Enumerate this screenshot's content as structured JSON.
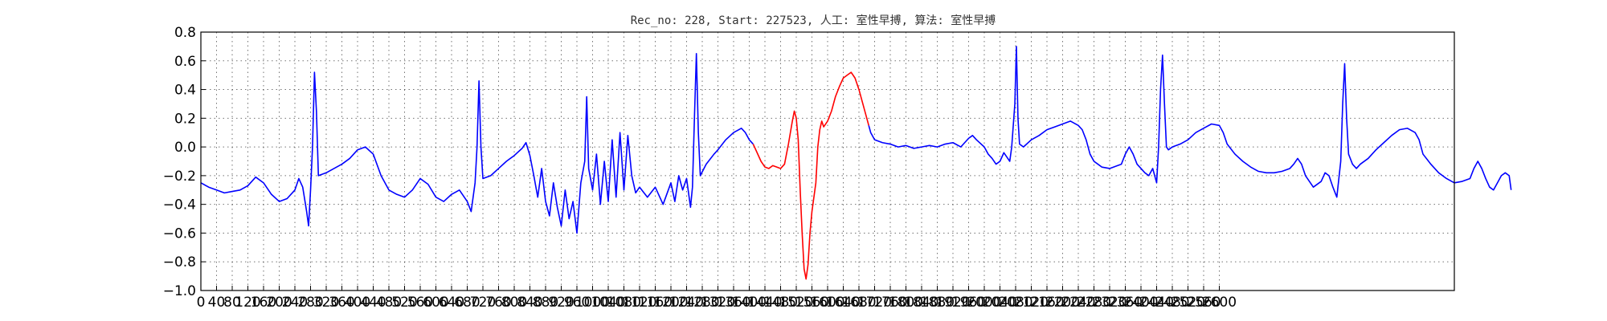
{
  "chart_data": {
    "type": "line",
    "title": "Rec_no: 228, Start: 227523, 人工: 室性早搏, 算法: 室性早搏",
    "xlabel": "",
    "ylabel": "",
    "xlim": [
      0,
      3200
    ],
    "ylim": [
      -1.0,
      0.8
    ],
    "grid": true,
    "ytick_labels": [
      "0.8",
      "0.6",
      "0.4",
      "0.2",
      "0.0",
      "−0.2",
      "−0.4",
      "−0.6",
      "−0.8",
      "−1.0"
    ],
    "ytick_values": [
      0.8,
      0.6,
      0.4,
      0.2,
      0.0,
      -0.2,
      -0.4,
      -0.6,
      -0.8,
      -1.0
    ],
    "xtick_values": [
      0,
      40,
      80,
      120,
      160,
      200,
      240,
      280,
      320,
      360,
      400,
      440,
      480,
      520,
      560,
      600,
      640,
      680,
      720,
      760,
      800,
      840,
      880,
      920,
      960,
      1000,
      1040,
      1080,
      1120,
      1160,
      1200,
      1240,
      1280,
      1320,
      1360,
      1400,
      1440,
      1480,
      1520,
      1560,
      1600,
      1640,
      1680,
      1720,
      1760,
      1800,
      1840,
      1880,
      1920,
      1960,
      2000,
      2040,
      2080,
      2120,
      2160,
      2200,
      2240,
      2280,
      2320,
      2360,
      2400,
      2440,
      2480,
      2520,
      2560,
      2600
    ],
    "series": [
      {
        "color": "#0000ff",
        "points": [
          [
            0,
            -0.25
          ],
          [
            20,
            -0.28
          ],
          [
            40,
            -0.3
          ],
          [
            60,
            -0.32
          ],
          [
            80,
            -0.31
          ],
          [
            100,
            -0.3
          ],
          [
            120,
            -0.27
          ],
          [
            140,
            -0.21
          ],
          [
            160,
            -0.25
          ],
          [
            180,
            -0.33
          ],
          [
            200,
            -0.38
          ],
          [
            220,
            -0.36
          ],
          [
            240,
            -0.3
          ],
          [
            250,
            -0.22
          ],
          [
            260,
            -0.28
          ],
          [
            270,
            -0.45
          ],
          [
            275,
            -0.55
          ],
          [
            280,
            -0.3
          ],
          [
            285,
            0.0
          ],
          [
            290,
            0.52
          ],
          [
            295,
            0.25
          ],
          [
            300,
            -0.2
          ],
          [
            320,
            -0.18
          ],
          [
            340,
            -0.15
          ],
          [
            360,
            -0.12
          ],
          [
            380,
            -0.08
          ],
          [
            400,
            -0.02
          ],
          [
            420,
            0.0
          ],
          [
            440,
            -0.05
          ],
          [
            460,
            -0.2
          ],
          [
            480,
            -0.3
          ],
          [
            500,
            -0.33
          ],
          [
            520,
            -0.35
          ],
          [
            540,
            -0.3
          ],
          [
            560,
            -0.22
          ],
          [
            580,
            -0.26
          ],
          [
            600,
            -0.35
          ],
          [
            620,
            -0.38
          ],
          [
            640,
            -0.33
          ],
          [
            660,
            -0.3
          ],
          [
            680,
            -0.38
          ],
          [
            690,
            -0.45
          ],
          [
            700,
            -0.25
          ],
          [
            705,
            0.0
          ],
          [
            710,
            0.46
          ],
          [
            715,
            0.0
          ],
          [
            720,
            -0.22
          ],
          [
            740,
            -0.2
          ],
          [
            760,
            -0.15
          ],
          [
            780,
            -0.1
          ],
          [
            800,
            -0.06
          ],
          [
            820,
            -0.01
          ],
          [
            830,
            0.03
          ],
          [
            840,
            -0.06
          ],
          [
            850,
            -0.2
          ],
          [
            860,
            -0.35
          ],
          [
            870,
            -0.15
          ],
          [
            880,
            -0.38
          ],
          [
            890,
            -0.48
          ],
          [
            900,
            -0.25
          ],
          [
            910,
            -0.42
          ],
          [
            920,
            -0.55
          ],
          [
            930,
            -0.3
          ],
          [
            940,
            -0.5
          ],
          [
            950,
            -0.38
          ],
          [
            960,
            -0.6
          ],
          [
            970,
            -0.25
          ],
          [
            980,
            -0.1
          ],
          [
            985,
            0.35
          ],
          [
            990,
            -0.15
          ],
          [
            1000,
            -0.3
          ],
          [
            1010,
            -0.05
          ],
          [
            1020,
            -0.4
          ],
          [
            1030,
            -0.1
          ],
          [
            1040,
            -0.38
          ],
          [
            1050,
            0.05
          ],
          [
            1060,
            -0.35
          ],
          [
            1070,
            0.1
          ],
          [
            1080,
            -0.3
          ],
          [
            1090,
            0.08
          ],
          [
            1100,
            -0.2
          ],
          [
            1110,
            -0.32
          ],
          [
            1120,
            -0.28
          ],
          [
            1140,
            -0.35
          ],
          [
            1160,
            -0.28
          ],
          [
            1180,
            -0.4
          ],
          [
            1200,
            -0.25
          ],
          [
            1210,
            -0.38
          ],
          [
            1220,
            -0.2
          ],
          [
            1230,
            -0.3
          ],
          [
            1240,
            -0.22
          ],
          [
            1250,
            -0.42
          ],
          [
            1255,
            -0.28
          ],
          [
            1260,
            0.2
          ],
          [
            1265,
            0.65
          ],
          [
            1270,
            0.1
          ],
          [
            1275,
            -0.2
          ],
          [
            1290,
            -0.12
          ],
          [
            1310,
            -0.05
          ],
          [
            1320,
            -0.02
          ],
          [
            1340,
            0.05
          ],
          [
            1360,
            0.1
          ],
          [
            1380,
            0.13
          ],
          [
            1390,
            0.1
          ],
          [
            1400,
            0.05
          ],
          [
            1410,
            0.02
          ]
        ]
      },
      {
        "color": "#ff0000",
        "points": [
          [
            1410,
            0.02
          ],
          [
            1420,
            -0.04
          ],
          [
            1430,
            -0.1
          ],
          [
            1440,
            -0.14
          ],
          [
            1450,
            -0.15
          ],
          [
            1460,
            -0.13
          ],
          [
            1470,
            -0.14
          ],
          [
            1480,
            -0.15
          ],
          [
            1490,
            -0.12
          ],
          [
            1500,
            0.02
          ],
          [
            1510,
            0.18
          ],
          [
            1515,
            0.25
          ],
          [
            1520,
            0.2
          ],
          [
            1525,
            0.05
          ],
          [
            1530,
            -0.3
          ],
          [
            1535,
            -0.6
          ],
          [
            1540,
            -0.85
          ],
          [
            1545,
            -0.92
          ],
          [
            1550,
            -0.82
          ],
          [
            1555,
            -0.6
          ],
          [
            1560,
            -0.45
          ],
          [
            1570,
            -0.25
          ],
          [
            1575,
            0.0
          ],
          [
            1580,
            0.12
          ],
          [
            1585,
            0.18
          ],
          [
            1590,
            0.14
          ],
          [
            1600,
            0.18
          ],
          [
            1610,
            0.25
          ],
          [
            1620,
            0.35
          ],
          [
            1630,
            0.42
          ],
          [
            1640,
            0.48
          ],
          [
            1650,
            0.5
          ],
          [
            1660,
            0.52
          ],
          [
            1670,
            0.48
          ],
          [
            1680,
            0.4
          ],
          [
            1690,
            0.3
          ],
          [
            1700,
            0.2
          ],
          [
            1705,
            0.15
          ]
        ]
      },
      {
        "color": "#0000ff",
        "points": [
          [
            1705,
            0.15
          ],
          [
            1710,
            0.1
          ],
          [
            1720,
            0.05
          ],
          [
            1740,
            0.03
          ],
          [
            1760,
            0.02
          ],
          [
            1780,
            0.0
          ],
          [
            1800,
            0.01
          ],
          [
            1820,
            -0.01
          ],
          [
            1840,
            0.0
          ],
          [
            1860,
            0.01
          ],
          [
            1880,
            0.0
          ],
          [
            1900,
            0.02
          ],
          [
            1920,
            0.03
          ],
          [
            1940,
            0.0
          ],
          [
            1960,
            0.06
          ],
          [
            1970,
            0.08
          ],
          [
            1980,
            0.05
          ],
          [
            2000,
            0.0
          ],
          [
            2010,
            -0.05
          ],
          [
            2020,
            -0.08
          ],
          [
            2030,
            -0.12
          ],
          [
            2040,
            -0.1
          ],
          [
            2050,
            -0.04
          ],
          [
            2060,
            -0.08
          ],
          [
            2065,
            -0.1
          ],
          [
            2070,
            0.0
          ],
          [
            2078,
            0.3
          ],
          [
            2082,
            0.7
          ],
          [
            2086,
            0.2
          ],
          [
            2090,
            0.02
          ],
          [
            2100,
            0.0
          ],
          [
            2120,
            0.05
          ],
          [
            2140,
            0.08
          ],
          [
            2160,
            0.12
          ],
          [
            2180,
            0.14
          ],
          [
            2200,
            0.16
          ],
          [
            2220,
            0.18
          ],
          [
            2240,
            0.15
          ],
          [
            2250,
            0.12
          ],
          [
            2260,
            0.05
          ],
          [
            2270,
            -0.05
          ],
          [
            2280,
            -0.1
          ],
          [
            2290,
            -0.12
          ],
          [
            2300,
            -0.14
          ],
          [
            2320,
            -0.15
          ],
          [
            2340,
            -0.13
          ],
          [
            2350,
            -0.12
          ],
          [
            2360,
            -0.05
          ],
          [
            2370,
            0.0
          ],
          [
            2380,
            -0.05
          ],
          [
            2390,
            -0.12
          ],
          [
            2400,
            -0.15
          ],
          [
            2410,
            -0.18
          ],
          [
            2420,
            -0.2
          ],
          [
            2430,
            -0.15
          ],
          [
            2440,
            -0.25
          ],
          [
            2445,
            0.0
          ],
          [
            2450,
            0.4
          ],
          [
            2455,
            0.64
          ],
          [
            2460,
            0.3
          ],
          [
            2465,
            0.0
          ],
          [
            2470,
            -0.02
          ],
          [
            2480,
            0.0
          ],
          [
            2500,
            0.02
          ],
          [
            2520,
            0.05
          ],
          [
            2540,
            0.1
          ],
          [
            2560,
            0.13
          ],
          [
            2580,
            0.16
          ],
          [
            2600,
            0.15
          ],
          [
            2610,
            0.1
          ],
          [
            2620,
            0.02
          ],
          [
            2640,
            -0.05
          ],
          [
            2660,
            -0.1
          ],
          [
            2680,
            -0.14
          ],
          [
            2700,
            -0.17
          ],
          [
            2720,
            -0.18
          ],
          [
            2740,
            -0.18
          ],
          [
            2760,
            -0.17
          ],
          [
            2780,
            -0.15
          ],
          [
            2790,
            -0.12
          ],
          [
            2800,
            -0.08
          ],
          [
            2810,
            -0.12
          ],
          [
            2820,
            -0.2
          ],
          [
            2840,
            -0.28
          ],
          [
            2860,
            -0.24
          ],
          [
            2870,
            -0.18
          ],
          [
            2880,
            -0.2
          ],
          [
            2890,
            -0.28
          ],
          [
            2900,
            -0.35
          ],
          [
            2910,
            -0.1
          ],
          [
            2915,
            0.3
          ],
          [
            2920,
            0.58
          ],
          [
            2925,
            0.2
          ],
          [
            2930,
            -0.05
          ],
          [
            2940,
            -0.12
          ],
          [
            2950,
            -0.15
          ],
          [
            2960,
            -0.12
          ],
          [
            2980,
            -0.08
          ],
          [
            3000,
            -0.02
          ],
          [
            3020,
            0.03
          ],
          [
            3040,
            0.08
          ],
          [
            3060,
            0.12
          ],
          [
            3080,
            0.13
          ],
          [
            3100,
            0.1
          ],
          [
            3110,
            0.05
          ],
          [
            3120,
            -0.05
          ],
          [
            3140,
            -0.12
          ],
          [
            3160,
            -0.18
          ],
          [
            3180,
            -0.22
          ],
          [
            3200,
            -0.25
          ],
          [
            3220,
            -0.24
          ],
          [
            3240,
            -0.22
          ],
          [
            3250,
            -0.15
          ],
          [
            3260,
            -0.1
          ],
          [
            3270,
            -0.15
          ],
          [
            3280,
            -0.22
          ],
          [
            3290,
            -0.28
          ],
          [
            3300,
            -0.3
          ],
          [
            3310,
            -0.25
          ],
          [
            3320,
            -0.2
          ],
          [
            3330,
            -0.18
          ],
          [
            3340,
            -0.2
          ],
          [
            3345,
            -0.3
          ]
        ]
      }
    ]
  }
}
